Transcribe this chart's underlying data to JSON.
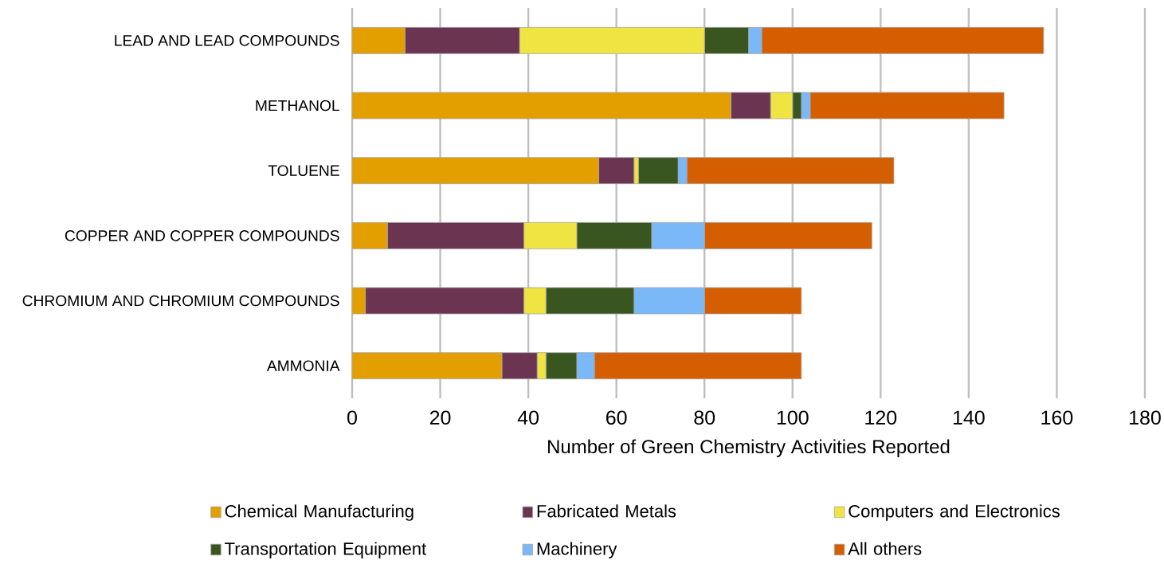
{
  "chart_data": {
    "type": "bar",
    "orientation": "horizontal",
    "stacked": true,
    "categories": [
      "LEAD AND LEAD COMPOUNDS",
      "METHANOL",
      "TOLUENE",
      "COPPER AND COPPER COMPOUNDS",
      "CHROMIUM AND CHROMIUM COMPOUNDS",
      "AMMONIA"
    ],
    "series": [
      {
        "name": "Chemical Manufacturing",
        "color": "#e39e00",
        "values": [
          12,
          86,
          56,
          8,
          3,
          34
        ]
      },
      {
        "name": "Fabricated Metals",
        "color": "#6b3552",
        "values": [
          26,
          9,
          8,
          31,
          36,
          8
        ]
      },
      {
        "name": "Computers and Electronics",
        "color": "#f0e442",
        "values": [
          42,
          5,
          1,
          12,
          5,
          2
        ]
      },
      {
        "name": "Transportation Equipment",
        "color": "#3a5620",
        "values": [
          10,
          2,
          9,
          17,
          20,
          7
        ]
      },
      {
        "name": "Machinery",
        "color": "#7ab8f8",
        "values": [
          3,
          2,
          2,
          12,
          16,
          4
        ]
      },
      {
        "name": "All others",
        "color": "#d55e00",
        "values": [
          64,
          44,
          47,
          38,
          22,
          47
        ]
      }
    ],
    "xlim": [
      0,
      180
    ],
    "xticks": [
      0,
      20,
      40,
      60,
      80,
      100,
      120,
      140,
      160,
      180
    ],
    "xlabel": "Number of Green Chemistry Activities Reported",
    "grid": "x",
    "legend": "bottom"
  }
}
